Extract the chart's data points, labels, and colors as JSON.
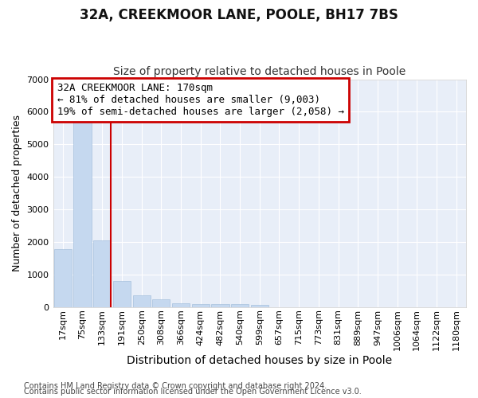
{
  "title": "32A, CREEKMOOR LANE, POOLE, BH17 7BS",
  "subtitle": "Size of property relative to detached houses in Poole",
  "xlabel": "Distribution of detached houses by size in Poole",
  "ylabel": "Number of detached properties",
  "categories": [
    "17sqm",
    "75sqm",
    "133sqm",
    "191sqm",
    "250sqm",
    "308sqm",
    "366sqm",
    "424sqm",
    "482sqm",
    "540sqm",
    "599sqm",
    "657sqm",
    "715sqm",
    "773sqm",
    "831sqm",
    "889sqm",
    "947sqm",
    "1006sqm",
    "1064sqm",
    "1122sqm",
    "1180sqm"
  ],
  "values": [
    1780,
    5750,
    2050,
    800,
    360,
    230,
    120,
    100,
    95,
    85,
    75,
    0,
    0,
    0,
    0,
    0,
    0,
    0,
    0,
    0,
    0
  ],
  "bar_color": "#c5d8ef",
  "bar_edge_color": "#9ab8d8",
  "highlight_line_index": 2,
  "highlight_color": "#cc0000",
  "ylim": [
    0,
    7000
  ],
  "yticks": [
    0,
    1000,
    2000,
    3000,
    4000,
    5000,
    6000,
    7000
  ],
  "annotation_line1": "32A CREEKMOOR LANE: 170sqm",
  "annotation_line2": "← 81% of detached houses are smaller (9,003)",
  "annotation_line3": "19% of semi-detached houses are larger (2,058) →",
  "annotation_box_edge_color": "#cc0000",
  "footnote1": "Contains HM Land Registry data © Crown copyright and database right 2024.",
  "footnote2": "Contains public sector information licensed under the Open Government Licence v3.0.",
  "bg_color": "#ffffff",
  "plot_bg_color": "#e8eef8",
  "grid_color": "#ffffff",
  "title_fontsize": 12,
  "subtitle_fontsize": 10,
  "xlabel_fontsize": 10,
  "ylabel_fontsize": 9,
  "tick_fontsize": 8,
  "annotation_fontsize": 9,
  "footnote_fontsize": 7
}
